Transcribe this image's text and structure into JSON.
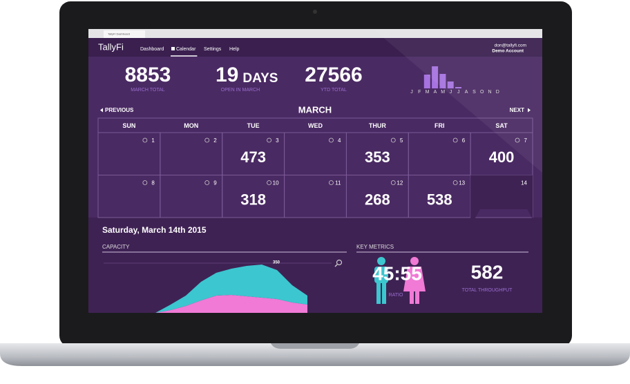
{
  "browser": {
    "tab_title": "TallyFi Dashboard"
  },
  "nav": {
    "logo": "TallyFi",
    "links": [
      "Dashboard",
      "Calendar",
      "Settings",
      "Help"
    ],
    "active": 1,
    "user": "don@tallyfi.com",
    "account": "Demo Account"
  },
  "stats": [
    {
      "value": "8853",
      "label": "MARCH TOTAL"
    },
    {
      "value": "19",
      "unit": "DAYS",
      "label": "OPEN IN MARCH"
    },
    {
      "value": "27566",
      "label": "YTD TOTAL"
    }
  ],
  "monthly_chart": {
    "type": "bar",
    "color": "#a673e0",
    "categories": [
      "J",
      "F",
      "M",
      "A",
      "M",
      "J",
      "J",
      "A",
      "S",
      "O",
      "N",
      "D"
    ],
    "values": [
      0,
      20,
      32,
      21,
      10,
      2,
      0,
      0,
      0,
      0,
      0,
      0
    ]
  },
  "calendar": {
    "previous": "PREVIOUS",
    "month": "MARCH",
    "next": "NEXT",
    "weekdays": [
      "SUN",
      "MON",
      "TUE",
      "WED",
      "THUR",
      "FRI",
      "SAT"
    ],
    "cells": [
      {
        "day": 1
      },
      {
        "day": 2
      },
      {
        "day": 3,
        "value": 473
      },
      {
        "day": 4
      },
      {
        "day": 5,
        "value": 353
      },
      {
        "day": 6
      },
      {
        "day": 7,
        "value": 400
      },
      {
        "day": 8
      },
      {
        "day": 9
      },
      {
        "day": 10,
        "value": 318
      },
      {
        "day": 11
      },
      {
        "day": 12,
        "value": 268
      },
      {
        "day": 13,
        "value": 538
      },
      {
        "day": 14
      }
    ],
    "selected": 13
  },
  "detail": {
    "date": "Saturday, March 14th 2015",
    "capacity_title": "CAPACITY",
    "metrics_title": "KEY METRICS",
    "ratio": "45:55",
    "ratio_label": "RATIO",
    "throughput": 582,
    "throughput_label": "TOTAL THROUGHPUT"
  },
  "capacity_chart": {
    "type": "area",
    "annotation": "350",
    "series": [
      {
        "name": "women",
        "color": "#f07ad6",
        "values": [
          0,
          4,
          10,
          18,
          25,
          26,
          24,
          22,
          20,
          15,
          12
        ]
      },
      {
        "name": "men",
        "color": "#3cc6cf",
        "values": [
          0,
          8,
          15,
          27,
          33,
          38,
          44,
          48,
          42,
          25,
          13
        ]
      }
    ]
  }
}
